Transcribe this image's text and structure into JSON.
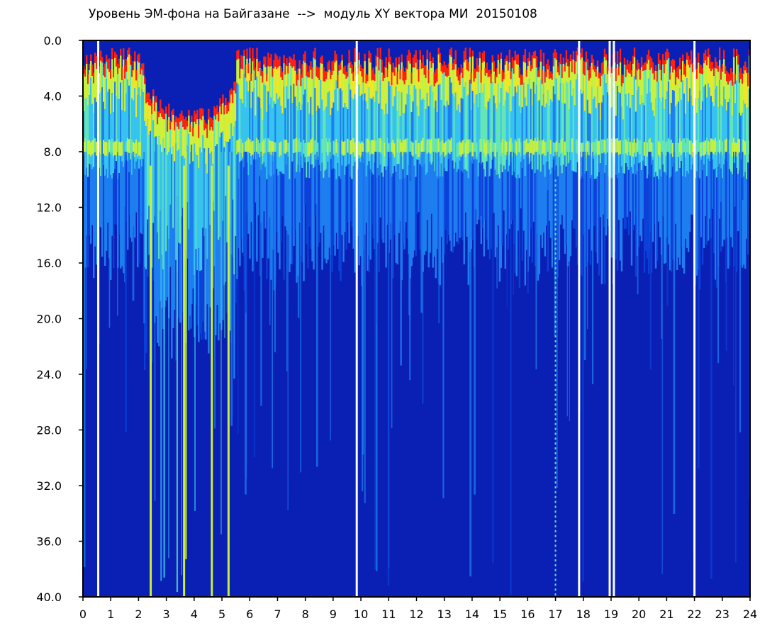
{
  "chart_data": {
    "type": "heatmap",
    "title": "Уровень ЭМ-фона на Байгазане  -->  модуль XY вектора МИ  20150108",
    "xlabel": "",
    "ylabel": "",
    "xlim": [
      0,
      24
    ],
    "ylim": [
      0,
      40
    ],
    "y_axis_inverted": true,
    "x_ticks": [
      0,
      1,
      2,
      3,
      4,
      5,
      6,
      7,
      8,
      9,
      10,
      11,
      12,
      13,
      14,
      15,
      16,
      17,
      18,
      19,
      20,
      21,
      22,
      23,
      24
    ],
    "x_tick_labels": [
      "0",
      "1",
      "2",
      "3",
      "4",
      "5",
      "6",
      "7",
      "8",
      "9",
      "10",
      "11",
      "12",
      "13",
      "14",
      "15",
      "16",
      "17",
      "18",
      "19",
      "20",
      "21",
      "22",
      "23",
      "24"
    ],
    "y_ticks": [
      0,
      4,
      8,
      12,
      16,
      20,
      24,
      28,
      32,
      36,
      40
    ],
    "y_tick_labels": [
      "0.0",
      "4.0",
      "8.0",
      "12.0",
      "16.0",
      "20.0",
      "24.0",
      "28.0",
      "32.0",
      "36.0",
      "40.0"
    ],
    "colormap": [
      "#0a1fb4",
      "#0c40d8",
      "#1e7ef0",
      "#37c3f0",
      "#64e6b4",
      "#c8f03c",
      "#f0e628",
      "#ff2010"
    ],
    "background_level_color": "#0a1fb4",
    "grid": false,
    "legend": "none",
    "intense_band_y": [
      2,
      9
    ],
    "disturbed_band_x": [
      2.2,
      5.5
    ],
    "gap_lines_x": [
      0.55,
      9.85,
      17.85,
      18.95,
      19.1,
      22.0
    ],
    "sparse_line_x": 17.0,
    "bright_streaks": [
      {
        "x": 5.2,
        "y_to": 40
      },
      {
        "x": 2.4,
        "y_to": 40
      },
      {
        "x": 3.6,
        "y_to": 40
      },
      {
        "x": 4.6,
        "y_to": 40
      }
    ]
  }
}
